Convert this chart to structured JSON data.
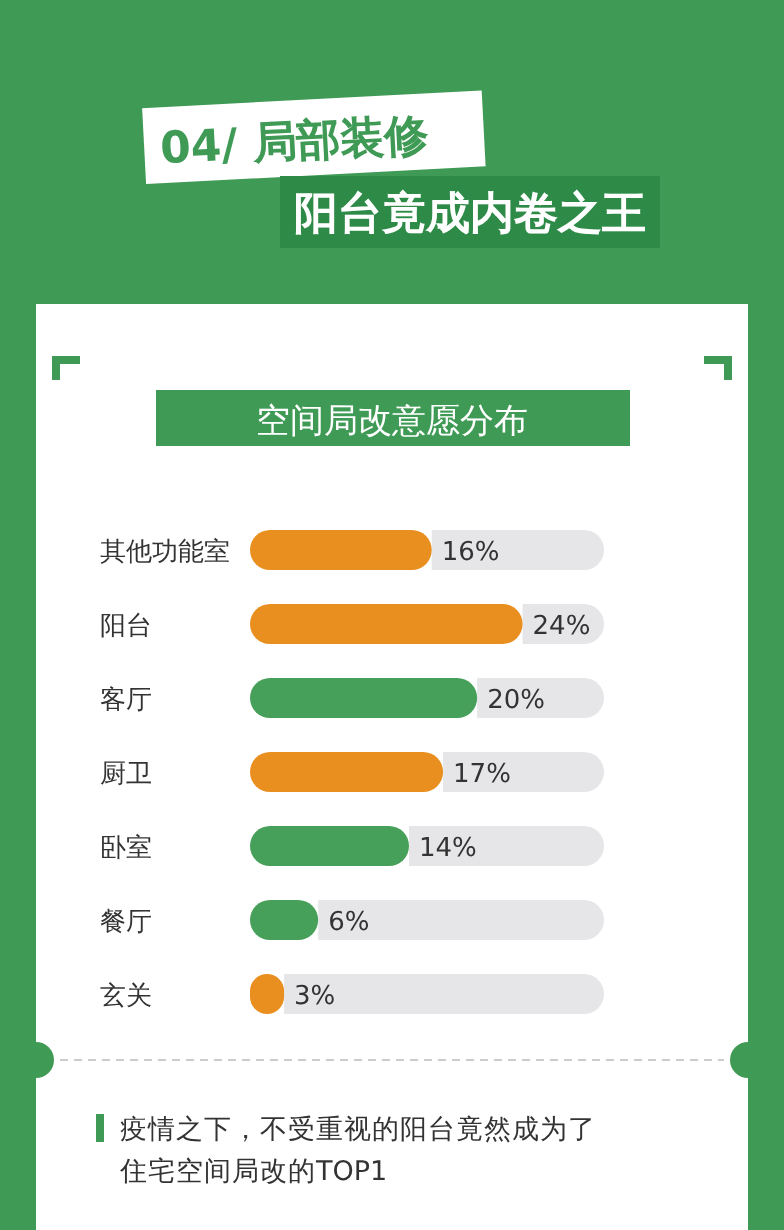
{
  "chart_data": {
    "type": "bar",
    "orientation": "horizontal",
    "title": "04/ 局部装修",
    "subtitle": "阳台竟成内卷之王",
    "categories": [
      "其他功能室",
      "阳台",
      "客厅",
      "厨卫",
      "卧室",
      "餐厅",
      "玄关"
    ],
    "values": [
      16,
      24,
      20,
      17,
      14,
      6,
      3
    ],
    "colors": [
      "#e98f1f",
      "#e98f1f",
      "#47a05a",
      "#e98f1f",
      "#47a05a",
      "#47a05a",
      "#e98f1f"
    ],
    "value_labels": [
      "16%",
      "24%",
      "20%",
      "17%",
      "14%",
      "6%",
      "3%"
    ],
    "annotations": [
      "空间局改意愿分布",
      "疫情之下，不受重视的阳台竟然成为了住宅空间局改的TOP1"
    ]
  }
}
